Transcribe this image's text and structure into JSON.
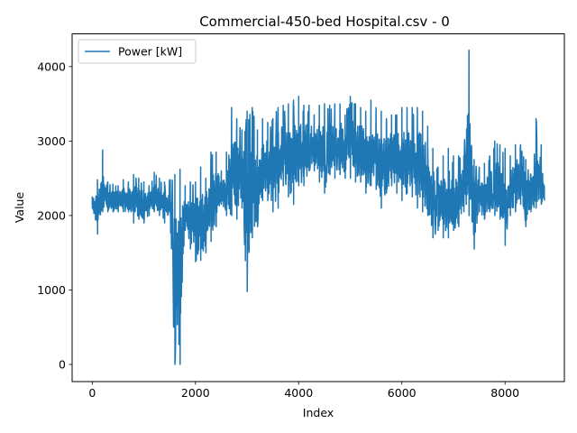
{
  "chart_data": {
    "type": "line",
    "title": "Commercial-450-bed Hospital.csv - 0",
    "xlabel": "Index",
    "ylabel": "Value",
    "xlim": [
      -390,
      9150
    ],
    "ylim": [
      -230,
      4440
    ],
    "xticks": [
      0,
      2000,
      4000,
      6000,
      8000
    ],
    "xtick_labels": [
      "0",
      "2000",
      "4000",
      "6000",
      "8000"
    ],
    "yticks": [
      0,
      1000,
      2000,
      3000,
      4000
    ],
    "ytick_labels": [
      "0",
      "1000",
      "2000",
      "3000",
      "4000"
    ],
    "grid": false,
    "legend": {
      "placement": "top-left",
      "entries": [
        "Power [kW]"
      ]
    },
    "series": [
      {
        "name": "Power [kW]",
        "color": "#1f77b4",
        "envelope_note_x": [
          0,
          100,
          200,
          300,
          400,
          500,
          600,
          700,
          800,
          900,
          1000,
          1100,
          1200,
          1300,
          1400,
          1500,
          1600,
          1700,
          1800,
          1900,
          2000,
          2100,
          2200,
          2300,
          2400,
          2500,
          2600,
          2700,
          2800,
          2900,
          3000,
          3100,
          3200,
          3300,
          3400,
          3500,
          3600,
          3700,
          3800,
          3900,
          4000,
          4100,
          4200,
          4300,
          4400,
          4500,
          4600,
          4700,
          4800,
          4900,
          5000,
          5100,
          5200,
          5300,
          5400,
          5500,
          5600,
          5700,
          5800,
          5900,
          6000,
          6100,
          6200,
          6300,
          6400,
          6500,
          6600,
          6700,
          6800,
          6900,
          7000,
          7100,
          7200,
          7300,
          7400,
          7500,
          7600,
          7700,
          7800,
          7900,
          8000,
          8100,
          8200,
          8300,
          8400,
          8500,
          8600,
          8700,
          8760
        ],
        "envelope_note_high": [
          2250,
          2480,
          2880,
          2450,
          2420,
          2400,
          2480,
          2450,
          2550,
          2500,
          2450,
          2400,
          2580,
          2500,
          2450,
          2480,
          2550,
          2620,
          2400,
          2450,
          2450,
          2650,
          2500,
          2850,
          2850,
          2600,
          2850,
          3450,
          3300,
          3150,
          3400,
          3450,
          3150,
          3300,
          3250,
          3300,
          3450,
          3480,
          3500,
          3550,
          3600,
          3480,
          3480,
          3350,
          3480,
          3500,
          3480,
          3500,
          3500,
          3350,
          3600,
          3500,
          3450,
          3400,
          3550,
          3450,
          3400,
          3300,
          3350,
          3350,
          3450,
          3450,
          3450,
          3450,
          3400,
          3200,
          2900,
          2650,
          2800,
          2900,
          2800,
          2800,
          2800,
          4220,
          2750,
          2650,
          2700,
          2800,
          3000,
          2950,
          2900,
          2800,
          2950,
          2950,
          2750,
          2550,
          3300,
          2950,
          2400
        ],
        "envelope_note_low": [
          2100,
          1750,
          2050,
          2050,
          2050,
          2050,
          2050,
          2050,
          1900,
          1950,
          1900,
          2000,
          2050,
          2000,
          1900,
          2050,
          0,
          0,
          1800,
          1550,
          1380,
          1400,
          1500,
          1650,
          1850,
          2150,
          2000,
          2000,
          1950,
          2100,
          980,
          1700,
          1850,
          2200,
          2200,
          2050,
          2100,
          2400,
          2250,
          2150,
          2400,
          2400,
          2600,
          2600,
          2450,
          2300,
          2550,
          2500,
          2550,
          2500,
          2500,
          2450,
          2450,
          2300,
          2400,
          2350,
          2100,
          2300,
          2400,
          2300,
          2200,
          2300,
          2250,
          2100,
          2050,
          2000,
          1700,
          1800,
          1700,
          1700,
          1800,
          1850,
          2050,
          2000,
          1550,
          2050,
          1950,
          2050,
          2000,
          1950,
          1600,
          2000,
          2050,
          2150,
          1850,
          2050,
          2100,
          2150,
          2200
        ]
      }
    ]
  }
}
